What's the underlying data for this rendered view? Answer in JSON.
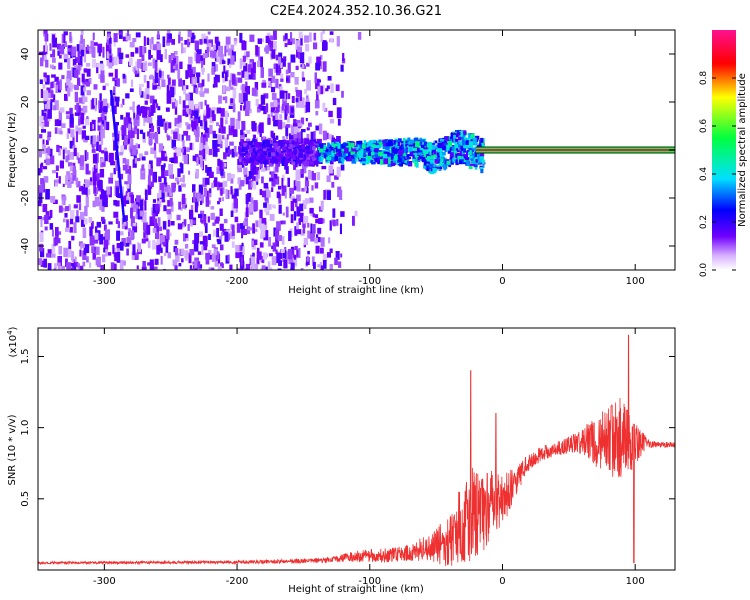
{
  "chart_data": [
    {
      "type": "heatmap",
      "title": "C2E4.2024.352.10.36.G21",
      "xlabel": "Height of straight line (km)",
      "ylabel": "Frequency (Hz)",
      "xlim": [
        -350,
        130
      ],
      "ylim": [
        -50,
        50
      ],
      "xticks": [
        -300,
        -200,
        -100,
        0,
        100
      ],
      "xtick_labels": [
        "-300",
        "-200",
        "-100",
        "0",
        "100"
      ],
      "yticks": [
        -40,
        -20,
        0,
        20,
        40
      ],
      "ytick_labels": [
        "-40",
        "-20",
        "0",
        "20",
        "40"
      ],
      "colorbar": {
        "label": "Normalized spectral amplitude",
        "range": [
          0,
          1
        ],
        "ticks": [
          0.0,
          0.2,
          0.4,
          0.6,
          0.8
        ],
        "tick_labels": [
          "0.0",
          "0.2",
          "0.4",
          "0.6",
          "0.8"
        ],
        "colormap": [
          "#ffffff",
          "#7000ff",
          "#0000ff",
          "#00e0ff",
          "#00ff40",
          "#ffff00",
          "#ff0000",
          "#ff1090"
        ]
      },
      "features": [
        {
          "name": "noise",
          "x_range": [
            -350,
            -120
          ],
          "freq_range": [
            -50,
            50
          ],
          "amplitude": 0.08
        },
        {
          "name": "narrowing band",
          "x_range": [
            -140,
            -15
          ],
          "freq_center": 0,
          "amplitude": 0.35
        },
        {
          "name": "carrier line",
          "x_range": [
            -20,
            130
          ],
          "freq": 0,
          "amplitude": 0.95
        }
      ],
      "grid": false
    },
    {
      "type": "line",
      "title": "",
      "xlabel": "Height of straight line (km)",
      "ylabel": "SNR (10 * v/v)",
      "y_multiplier": "(x10^4)",
      "y_multiplier_base": "(x10",
      "y_multiplier_exp": "4",
      "y_multiplier_close": ")",
      "xlim": [
        -350,
        130
      ],
      "ylim": [
        0,
        1.7
      ],
      "xticks": [
        -300,
        -200,
        -100,
        0,
        100
      ],
      "xtick_labels": [
        "-300",
        "-200",
        "-100",
        "0",
        "100"
      ],
      "yticks": [
        0.5,
        1.0,
        1.5
      ],
      "ytick_labels": [
        "0.5",
        "1.0",
        "1.5"
      ],
      "color": "#ee3030",
      "envelope": {
        "x": [
          -350,
          -200,
          -160,
          -130,
          -110,
          -90,
          -70,
          -50,
          -40,
          -30,
          -20,
          -10,
          0,
          10,
          20,
          30,
          40,
          50,
          60,
          70,
          80,
          90,
          100,
          110,
          120,
          130
        ],
        "y": [
          0.05,
          0.055,
          0.06,
          0.07,
          0.1,
          0.1,
          0.12,
          0.17,
          0.2,
          0.35,
          0.4,
          0.45,
          0.5,
          0.62,
          0.76,
          0.82,
          0.85,
          0.88,
          0.9,
          0.9,
          0.91,
          0.92,
          0.88,
          0.89,
          0.88,
          0.88
        ],
        "noise": [
          0.008,
          0.01,
          0.015,
          0.02,
          0.04,
          0.05,
          0.06,
          0.12,
          0.2,
          0.3,
          0.35,
          0.25,
          0.2,
          0.1,
          0.06,
          0.05,
          0.05,
          0.06,
          0.1,
          0.18,
          0.25,
          0.3,
          0.15,
          0.03,
          0.02,
          0.02
        ]
      },
      "spikes": [
        {
          "x": -24,
          "y": 1.4
        },
        {
          "x": -5,
          "y": 1.1
        },
        {
          "x": 82,
          "y": 1.15
        },
        {
          "x": 95,
          "y": 1.65
        },
        {
          "x": 99,
          "y": 0.05
        }
      ],
      "grid": false
    }
  ]
}
